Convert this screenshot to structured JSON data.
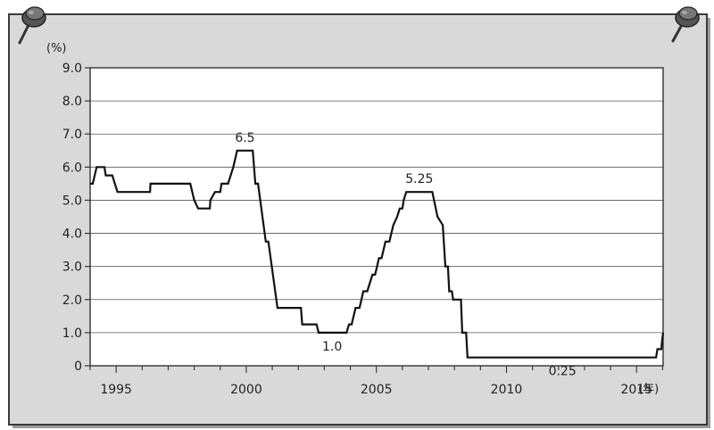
{
  "chart_data": {
    "type": "line",
    "title": "",
    "y_unit_label": "(%)",
    "x_unit_label": "(年)",
    "ylim": [
      0,
      9
    ],
    "xlim": [
      1994.0,
      2016.02
    ],
    "y_ticks": [
      {
        "value": 0,
        "label": "0"
      },
      {
        "value": 1,
        "label": "1.0"
      },
      {
        "value": 2,
        "label": "2.0"
      },
      {
        "value": 3,
        "label": "3.0"
      },
      {
        "value": 4,
        "label": "4.0"
      },
      {
        "value": 5,
        "label": "5.0"
      },
      {
        "value": 6,
        "label": "6.0"
      },
      {
        "value": 7,
        "label": "7.0"
      },
      {
        "value": 8,
        "label": "8.0"
      },
      {
        "value": 9,
        "label": "9.0"
      }
    ],
    "x_ticks": [
      {
        "value": 1995,
        "label": "1995"
      },
      {
        "value": 2000,
        "label": "2000"
      },
      {
        "value": 2005,
        "label": "2005"
      },
      {
        "value": 2010,
        "label": "2010"
      },
      {
        "value": 2015,
        "label": "2015"
      }
    ],
    "grid": true,
    "series": [
      {
        "points": [
          [
            1994.0,
            5.5
          ],
          [
            1994.1,
            5.5
          ],
          [
            1994.25,
            6.0
          ],
          [
            1994.55,
            6.0
          ],
          [
            1994.6,
            5.75
          ],
          [
            1994.85,
            5.75
          ],
          [
            1995.05,
            5.25
          ],
          [
            1996.3,
            5.25
          ],
          [
            1996.32,
            5.5
          ],
          [
            1997.85,
            5.5
          ],
          [
            1998.0,
            5.0
          ],
          [
            1998.15,
            4.75
          ],
          [
            1998.6,
            4.75
          ],
          [
            1998.62,
            5.0
          ],
          [
            1998.8,
            5.25
          ],
          [
            1999.0,
            5.25
          ],
          [
            1999.05,
            5.5
          ],
          [
            1999.3,
            5.5
          ],
          [
            1999.5,
            6.0
          ],
          [
            1999.65,
            6.5
          ],
          [
            2000.25,
            6.5
          ],
          [
            2000.35,
            5.5
          ],
          [
            2000.45,
            5.5
          ],
          [
            2000.75,
            3.75
          ],
          [
            2000.85,
            3.75
          ],
          [
            2001.2,
            1.75
          ],
          [
            2002.1,
            1.75
          ],
          [
            2002.15,
            1.25
          ],
          [
            2002.7,
            1.25
          ],
          [
            2002.78,
            1.0
          ],
          [
            2003.85,
            1.0
          ],
          [
            2003.95,
            1.25
          ],
          [
            2004.05,
            1.25
          ],
          [
            2004.2,
            1.75
          ],
          [
            2004.35,
            1.75
          ],
          [
            2004.5,
            2.25
          ],
          [
            2004.65,
            2.25
          ],
          [
            2004.85,
            2.75
          ],
          [
            2004.95,
            2.75
          ],
          [
            2005.1,
            3.25
          ],
          [
            2005.2,
            3.25
          ],
          [
            2005.35,
            3.75
          ],
          [
            2005.5,
            3.75
          ],
          [
            2005.65,
            4.25
          ],
          [
            2005.8,
            4.5
          ],
          [
            2005.9,
            4.75
          ],
          [
            2006.0,
            4.75
          ],
          [
            2006.05,
            5.0
          ],
          [
            2006.15,
            5.25
          ],
          [
            2007.15,
            5.25
          ],
          [
            2007.35,
            4.5
          ],
          [
            2007.55,
            4.25
          ],
          [
            2007.65,
            3.0
          ],
          [
            2007.75,
            3.0
          ],
          [
            2007.8,
            2.25
          ],
          [
            2007.9,
            2.25
          ],
          [
            2007.95,
            2.0
          ],
          [
            2008.25,
            2.0
          ],
          [
            2008.3,
            1.0
          ],
          [
            2008.45,
            1.0
          ],
          [
            2008.5,
            0.25
          ],
          [
            2015.75,
            0.25
          ],
          [
            2015.8,
            0.5
          ],
          [
            2015.95,
            0.5
          ],
          [
            2015.98,
            0.75
          ],
          [
            2016.02,
            1.0
          ]
        ]
      }
    ],
    "annotations": [
      {
        "label": "6.5",
        "x": 1999.95,
        "y": 6.5
      },
      {
        "label": "1.0",
        "x": 2003.3,
        "y": 1.0
      },
      {
        "label": "5.25",
        "x": 2006.65,
        "y": 5.25
      },
      {
        "label": "0.25",
        "x": 2012.15,
        "y": 0.25
      }
    ]
  }
}
